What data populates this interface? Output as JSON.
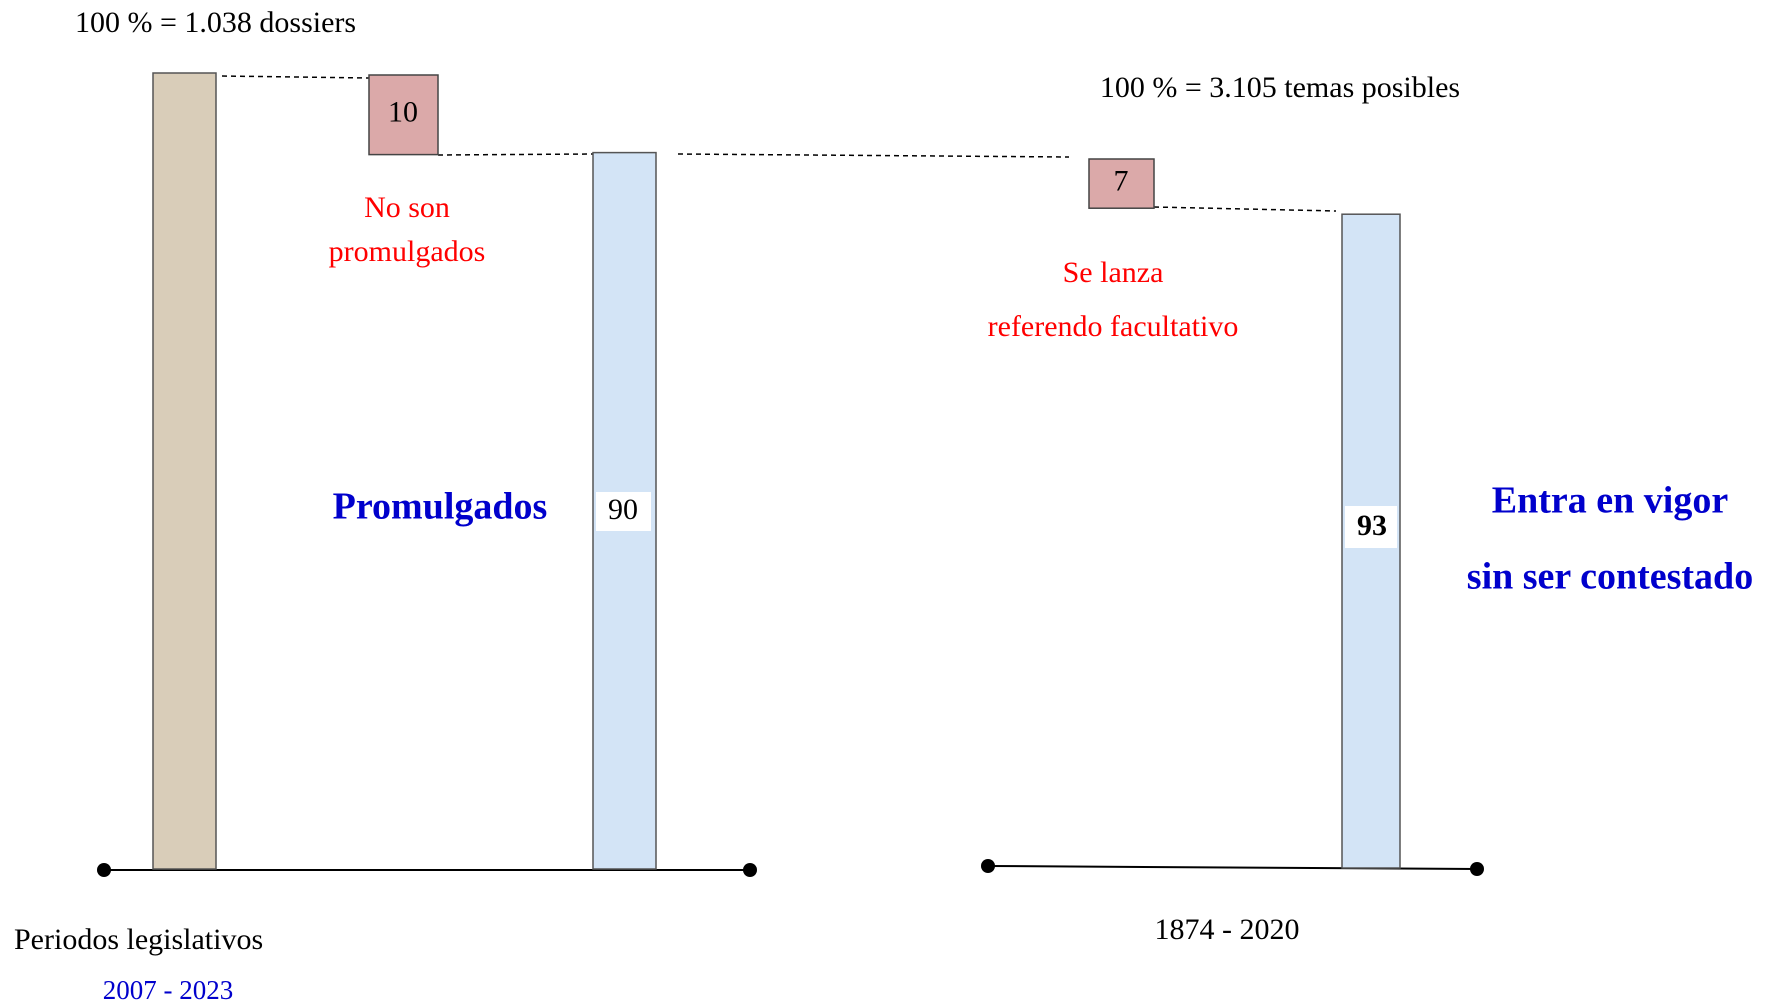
{
  "left": {
    "total_label": "100 % = 1.038 dossiers",
    "total": 100,
    "rejected": {
      "value": 10,
      "label_lines": [
        "No son",
        "promulgados"
      ]
    },
    "passed": {
      "value": 90,
      "label": "Promulgados"
    },
    "axis_label": "Periodos legislativos",
    "period": "2007 - 2023"
  },
  "right": {
    "total_label": "100 % = 3.105 temas posibles",
    "challenged": {
      "value": 7,
      "label_lines": [
        "Se lanza",
        "referendo facultativo"
      ]
    },
    "passed": {
      "value": 93,
      "label_lines": [
        "Entra en vigor",
        "sin ser contestado"
      ]
    },
    "period": "1874 - 2020"
  }
}
